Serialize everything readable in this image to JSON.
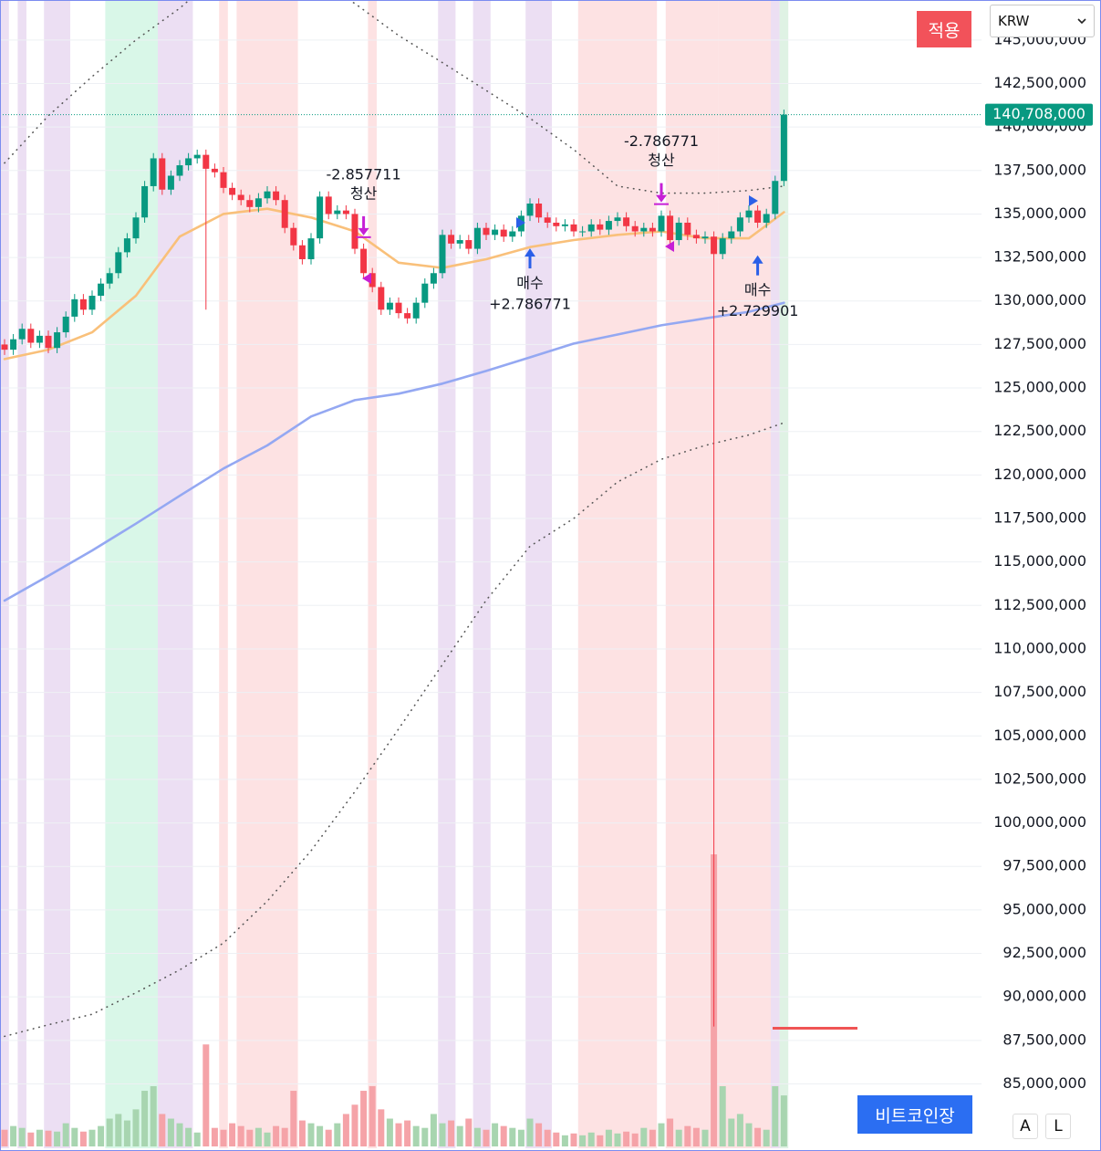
{
  "chart_data": {
    "type": "candlestick",
    "ylim": [
      81300000,
      147300000
    ],
    "yticks": [
      {
        "value": 85000000,
        "label": "85,000,000"
      },
      {
        "value": 87500000,
        "label": "87,500,000"
      },
      {
        "value": 90000000,
        "label": "90,000,000"
      },
      {
        "value": 92500000,
        "label": "92,500,000"
      },
      {
        "value": 95000000,
        "label": "95,000,000"
      },
      {
        "value": 97500000,
        "label": "97,500,000"
      },
      {
        "value": 100000000,
        "label": "100,000,000"
      },
      {
        "value": 102500000,
        "label": "102,500,000"
      },
      {
        "value": 105000000,
        "label": "105,000,000"
      },
      {
        "value": 107500000,
        "label": "107,500,000"
      },
      {
        "value": 110000000,
        "label": "110,000,000"
      },
      {
        "value": 112500000,
        "label": "112,500,000"
      },
      {
        "value": 115000000,
        "label": "115,000,000"
      },
      {
        "value": 117500000,
        "label": "117,500,000"
      },
      {
        "value": 120000000,
        "label": "120,000,000"
      },
      {
        "value": 122500000,
        "label": "122,500,000"
      },
      {
        "value": 125000000,
        "label": "125,000,000"
      },
      {
        "value": 127500000,
        "label": "127,500,000"
      },
      {
        "value": 130000000,
        "label": "130,000,000"
      },
      {
        "value": 132500000,
        "label": "132,500,000"
      },
      {
        "value": 135000000,
        "label": "135,000,000"
      },
      {
        "value": 137500000,
        "label": "137,500,000"
      },
      {
        "value": 140000000,
        "label": "140,000,000"
      },
      {
        "value": 142500000,
        "label": "142,500,000"
      },
      {
        "value": 145000000,
        "label": "145,000,000"
      }
    ],
    "up_color": "#089981",
    "down_color": "#f23645",
    "volume_up_color": "#a8d5b0",
    "volume_down_color": "#f5a3a8",
    "candles": {
      "open": [
        127500000,
        127200000,
        127800000,
        128400000,
        127600000,
        128000000,
        127300000,
        128200000,
        129100000,
        130100000,
        129500000,
        130300000,
        131000000,
        131600000,
        132800000,
        133600000,
        134800000,
        136600000,
        138200000,
        136400000,
        137200000,
        137800000,
        138200000,
        138400000,
        137600000,
        137400000,
        136500000,
        136100000,
        135800000,
        135400000,
        135900000,
        136300000,
        135800000,
        134200000,
        133200000,
        132400000,
        133600000,
        136000000,
        135000000,
        135200000,
        135000000,
        133000000,
        131600000,
        130800000,
        129500000,
        129900000,
        129300000,
        129000000,
        129900000,
        131000000,
        131600000,
        133800000,
        133300000,
        133500000,
        133000000,
        134200000,
        133800000,
        134100000,
        133700000,
        134000000,
        134900000,
        135600000,
        134800000,
        134500000,
        134300000,
        134400000,
        134000000,
        134000000,
        134400000,
        134100000,
        134600000,
        134800000,
        134300000,
        134000000,
        134200000,
        134000000,
        134900000,
        133500000,
        134500000,
        133800000,
        133600000,
        133700000,
        132700000,
        133600000,
        134000000,
        134800000,
        135200000,
        134500000,
        135000000,
        136900000
      ],
      "high": [
        127800000,
        128100000,
        128700000,
        128700000,
        128300000,
        128300000,
        128500000,
        129400000,
        130400000,
        130400000,
        130600000,
        131300000,
        131900000,
        133100000,
        133900000,
        135100000,
        136900000,
        138500000,
        138500000,
        137500000,
        138100000,
        138500000,
        138700000,
        138700000,
        137900000,
        137700000,
        136800000,
        136400000,
        136100000,
        136200000,
        136600000,
        136600000,
        136100000,
        134500000,
        133500000,
        133900000,
        136300000,
        136300000,
        135500000,
        135500000,
        135300000,
        133300000,
        131900000,
        131100000,
        130200000,
        130200000,
        129600000,
        130200000,
        131300000,
        131900000,
        134100000,
        134100000,
        133800000,
        133800000,
        134500000,
        134500000,
        134400000,
        134400000,
        134300000,
        135200000,
        135900000,
        135900000,
        135100000,
        134800000,
        134700000,
        134700000,
        134300000,
        134700000,
        134700000,
        134900000,
        135100000,
        135100000,
        134600000,
        134500000,
        134500000,
        135200000,
        135200000,
        134800000,
        134800000,
        134100000,
        134000000,
        134000000,
        133900000,
        134300000,
        135100000,
        135500000,
        135500000,
        135300000,
        137200000,
        141000000
      ],
      "low": [
        126900000,
        126900000,
        127500000,
        127300000,
        127300000,
        127000000,
        127000000,
        127900000,
        128800000,
        129200000,
        129200000,
        130000000,
        130700000,
        131300000,
        132500000,
        133300000,
        134500000,
        136300000,
        136100000,
        136100000,
        136900000,
        137500000,
        137900000,
        129500000,
        137100000,
        136200000,
        135800000,
        135500000,
        135100000,
        135100000,
        135600000,
        135500000,
        133900000,
        132900000,
        132100000,
        132100000,
        133300000,
        134700000,
        134700000,
        134700000,
        132700000,
        131300000,
        130500000,
        129200000,
        129200000,
        129000000,
        128700000,
        128700000,
        129600000,
        130700000,
        131300000,
        133000000,
        133000000,
        132700000,
        132700000,
        133500000,
        133500000,
        133400000,
        133400000,
        133700000,
        134600000,
        134500000,
        134200000,
        134000000,
        134000000,
        133700000,
        133700000,
        133700000,
        133800000,
        133800000,
        134300000,
        134000000,
        133700000,
        133700000,
        133700000,
        133700000,
        133200000,
        133200000,
        133500000,
        133300000,
        133300000,
        88300000,
        132400000,
        133300000,
        133700000,
        134500000,
        134200000,
        134200000,
        134700000,
        136600000
      ],
      "close": [
        127200000,
        127800000,
        128400000,
        127600000,
        128000000,
        127300000,
        128200000,
        129100000,
        130100000,
        129500000,
        130300000,
        131000000,
        131600000,
        132800000,
        133600000,
        134800000,
        136600000,
        138200000,
        136400000,
        137200000,
        137800000,
        138200000,
        138400000,
        137600000,
        137400000,
        136500000,
        136100000,
        135800000,
        135400000,
        135900000,
        136300000,
        135800000,
        134200000,
        133200000,
        132400000,
        133600000,
        136000000,
        135000000,
        135200000,
        135000000,
        133000000,
        131600000,
        130800000,
        129500000,
        129900000,
        129300000,
        129000000,
        129900000,
        131000000,
        131600000,
        133800000,
        133300000,
        133500000,
        133000000,
        134200000,
        133800000,
        134100000,
        133700000,
        134000000,
        134900000,
        135600000,
        134800000,
        134500000,
        134300000,
        134400000,
        134000000,
        134000000,
        134400000,
        134100000,
        134600000,
        134800000,
        134300000,
        134000000,
        134200000,
        134000000,
        134900000,
        133500000,
        134500000,
        133800000,
        133600000,
        133700000,
        132700000,
        133600000,
        134000000,
        134800000,
        135200000,
        134500000,
        135000000,
        136900000,
        140708000
      ]
    },
    "volumes": [
      18,
      22,
      20,
      15,
      18,
      17,
      16,
      25,
      20,
      16,
      18,
      22,
      30,
      35,
      28,
      40,
      60,
      65,
      35,
      30,
      25,
      20,
      15,
      110,
      20,
      18,
      25,
      22,
      18,
      20,
      15,
      22,
      20,
      60,
      28,
      25,
      22,
      18,
      25,
      35,
      45,
      60,
      65,
      40,
      30,
      25,
      28,
      22,
      20,
      35,
      25,
      28,
      22,
      30,
      20,
      18,
      25,
      22,
      20,
      18,
      30,
      25,
      18,
      15,
      12,
      14,
      12,
      15,
      12,
      18,
      14,
      16,
      14,
      20,
      18,
      25,
      30,
      18,
      22,
      20,
      18,
      315,
      65,
      30,
      35,
      25,
      20,
      18,
      65,
      55
    ],
    "overlays": [
      {
        "color": "#f9c07a",
        "style": "solid",
        "x": [
          0,
          5,
          10,
          15,
          20,
          25,
          30,
          35,
          40,
          45,
          50,
          55,
          60,
          65,
          70,
          75,
          80,
          85,
          89
        ],
        "values": [
          126660000,
          127200000,
          128200000,
          130300000,
          133700000,
          135000000,
          135300000,
          134800000,
          134000000,
          132200000,
          131900000,
          132400000,
          133100000,
          133500000,
          133800000,
          134000000,
          133600000,
          133600000,
          135100000
        ]
      },
      {
        "color": "#94a8f2",
        "style": "solid",
        "x": [
          0,
          5,
          10,
          15,
          20,
          25,
          30,
          35,
          40,
          45,
          50,
          55,
          60,
          65,
          70,
          75,
          80,
          85,
          89
        ],
        "values": [
          112780000,
          114200000,
          115660000,
          117200000,
          118800000,
          120370000,
          121700000,
          123360000,
          124300000,
          124670000,
          125250000,
          125980000,
          126760000,
          127550000,
          128070000,
          128600000,
          129000000,
          129380000,
          129900000
        ]
      },
      {
        "color": "#555555",
        "style": "dotted",
        "x": [
          0,
          5,
          10,
          15,
          20,
          25,
          30,
          35,
          40,
          45,
          50,
          55,
          60,
          65,
          70,
          75,
          80,
          85,
          89
        ],
        "values": [
          137930000,
          140650000,
          142900000,
          145000000,
          146830000,
          149000000,
          150000000,
          148500000,
          147100000,
          145260000,
          143700000,
          142100000,
          140500000,
          138700000,
          136600000,
          136200000,
          136200000,
          136350000,
          136600000
        ]
      },
      {
        "color": "#555555",
        "style": "dotted",
        "x": [
          0,
          5,
          10,
          15,
          20,
          25,
          30,
          35,
          40,
          45,
          50,
          55,
          60,
          65,
          70,
          75,
          80,
          85,
          89
        ],
        "values": [
          87730000,
          88400000,
          89000000,
          90240000,
          91550000,
          93100000,
          95500000,
          98400000,
          101800000,
          105400000,
          109100000,
          112800000,
          115900000,
          117500000,
          119600000,
          120900000,
          121700000,
          122300000,
          123000000
        ]
      }
    ],
    "regions": [
      {
        "start": 0,
        "end": 0,
        "color": "#ecdff3"
      },
      {
        "start": 2,
        "end": 2,
        "color": "#ecdff3"
      },
      {
        "start": 5,
        "end": 7,
        "color": "#ecdff3"
      },
      {
        "start": 12,
        "end": 17,
        "color": "#d9f7e8"
      },
      {
        "start": 18,
        "end": 21,
        "color": "#ecdff3"
      },
      {
        "start": 25,
        "end": 25,
        "color": "#fde2e3"
      },
      {
        "start": 27,
        "end": 33,
        "color": "#fde2e3"
      },
      {
        "start": 42,
        "end": 42,
        "color": "#fde2e3"
      },
      {
        "start": 50,
        "end": 51,
        "color": "#ecdff3"
      },
      {
        "start": 54,
        "end": 55,
        "color": "#ecdff3"
      },
      {
        "start": 60,
        "end": 62,
        "color": "#ecdff3"
      },
      {
        "start": 66,
        "end": 72,
        "color": "#fde2e3"
      },
      {
        "start": 73,
        "end": 74,
        "color": "#fde2e3"
      },
      {
        "start": 76,
        "end": 81,
        "color": "#fde2e3"
      },
      {
        "start": 82,
        "end": 87,
        "color": "#fde2e3"
      },
      {
        "start": 88,
        "end": 88,
        "color": "#ecdff3"
      },
      {
        "start": 89,
        "end": 89,
        "color": "#dff2e4"
      }
    ],
    "signals": [
      {
        "index": 41,
        "side": "sell",
        "amount": "-2.857711",
        "label": "청산"
      },
      {
        "index": 60,
        "side": "buy",
        "label": "매수",
        "amount": "+2.786771"
      },
      {
        "index": 75,
        "side": "sell",
        "amount": "-2.786771",
        "label": "청산"
      },
      {
        "index": 86,
        "side": "buy",
        "label": "매수",
        "amount": "+2.729901"
      }
    ],
    "last_price": {
      "value": 140708000,
      "label": "140,708,000",
      "color": "#089981"
    },
    "level_line": {
      "value": 88200000,
      "color": "#f05454"
    }
  },
  "controls": {
    "apply": "적용",
    "currency": "KRW",
    "market": "비트코인장",
    "auto": "A",
    "log": "L"
  }
}
